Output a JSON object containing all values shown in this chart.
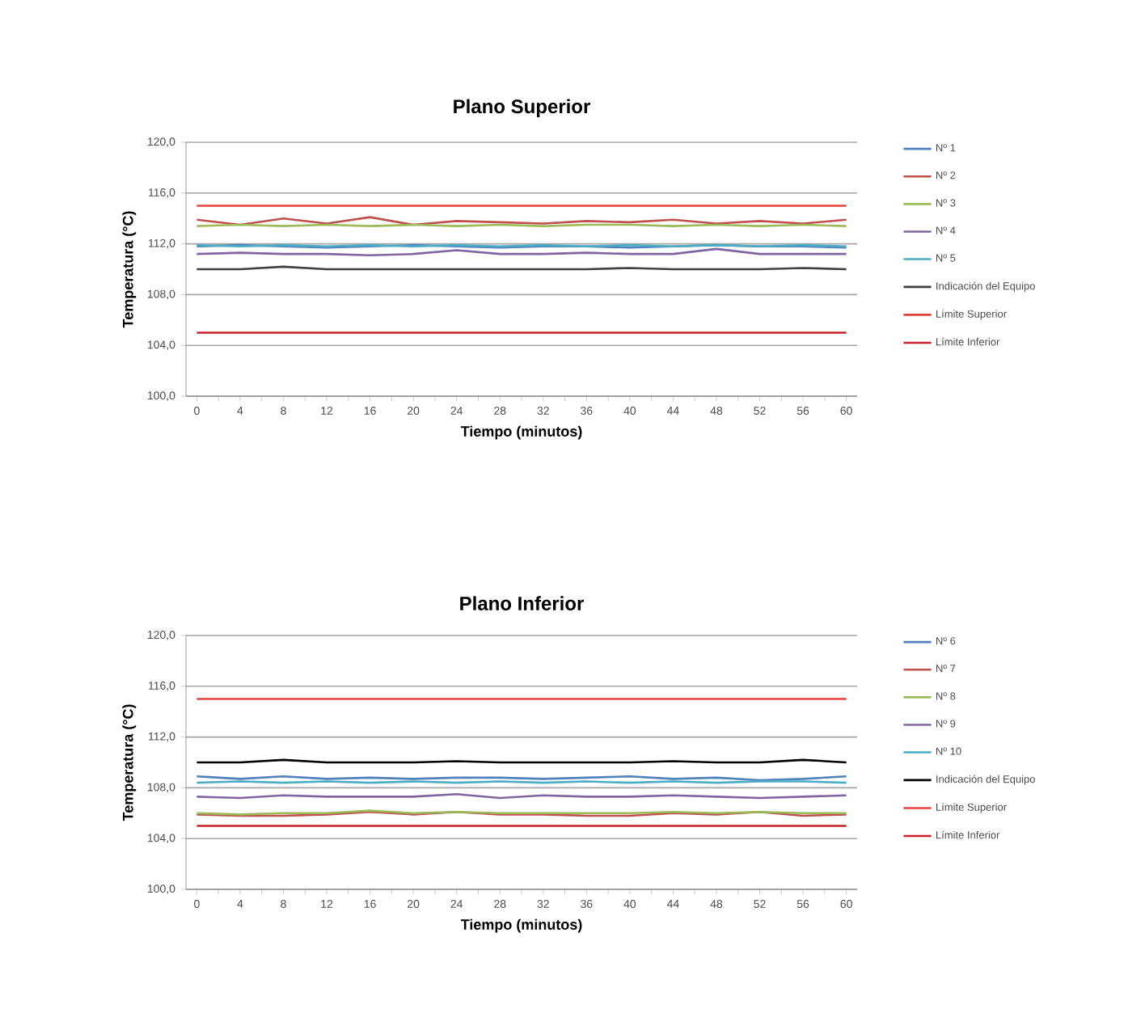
{
  "chart_data": [
    {
      "type": "line",
      "title": "Plano Superior",
      "xlabel": "Tiempo (minutos)",
      "ylabel": "Temperatura (°C)",
      "x": [
        0,
        4,
        8,
        12,
        16,
        20,
        24,
        28,
        32,
        36,
        40,
        44,
        48,
        52,
        56,
        60
      ],
      "xlim": [
        -1,
        61
      ],
      "xticks": [
        0,
        4,
        8,
        12,
        16,
        20,
        24,
        28,
        32,
        36,
        40,
        44,
        48,
        52,
        56,
        60
      ],
      "ylim": [
        100,
        120
      ],
      "yticks": [
        {
          "value": 100,
          "label": "100,0"
        },
        {
          "value": 104,
          "label": "104,0"
        },
        {
          "value": 108,
          "label": "108,0"
        },
        {
          "value": 112,
          "label": "112,0"
        },
        {
          "value": 116,
          "label": "116,0"
        },
        {
          "value": 120,
          "label": "120,0"
        }
      ],
      "grid": "y",
      "legend": "right",
      "marker": "none",
      "series": [
        {
          "name": "Nº 1",
          "color": "#4f81bd",
          "values": [
            111.8,
            111.9,
            111.8,
            111.7,
            111.8,
            111.9,
            111.8,
            111.7,
            111.8,
            111.8,
            111.7,
            111.8,
            111.9,
            111.8,
            111.8,
            111.7
          ]
        },
        {
          "name": "Nº 2",
          "color": "#c0504d",
          "values": [
            113.9,
            113.5,
            114.0,
            113.6,
            114.1,
            113.5,
            113.8,
            113.7,
            113.6,
            113.8,
            113.7,
            113.9,
            113.6,
            113.8,
            113.6,
            113.9
          ]
        },
        {
          "name": "Nº 3",
          "color": "#9bbb59",
          "values": [
            113.4,
            113.5,
            113.4,
            113.5,
            113.4,
            113.5,
            113.4,
            113.5,
            113.4,
            113.5,
            113.5,
            113.4,
            113.5,
            113.4,
            113.5,
            113.4
          ]
        },
        {
          "name": "Nº 4",
          "color": "#8064a2",
          "values": [
            111.2,
            111.3,
            111.2,
            111.2,
            111.1,
            111.2,
            111.5,
            111.2,
            111.2,
            111.3,
            111.2,
            111.2,
            111.6,
            111.2,
            111.2,
            111.2
          ]
        },
        {
          "name": "Nº 5",
          "color": "#4bacc6",
          "values": [
            111.9,
            111.8,
            111.9,
            111.8,
            111.9,
            111.8,
            111.9,
            111.8,
            111.9,
            111.8,
            111.9,
            111.8,
            111.9,
            111.8,
            111.9,
            111.8
          ]
        },
        {
          "name": "Indicación del Equipo",
          "color": "#404040",
          "values": [
            110.0,
            110.0,
            110.2,
            110.0,
            110.0,
            110.0,
            110.0,
            110.0,
            110.0,
            110.0,
            110.1,
            110.0,
            110.0,
            110.0,
            110.1,
            110.0
          ]
        },
        {
          "name": "Límite Superior",
          "color": "#e8403a",
          "values": [
            115,
            115,
            115,
            115,
            115,
            115,
            115,
            115,
            115,
            115,
            115,
            115,
            115,
            115,
            115,
            115
          ]
        },
        {
          "name": "Límite Inferior",
          "color": "#c8202a",
          "values": [
            105,
            105,
            105,
            105,
            105,
            105,
            105,
            105,
            105,
            105,
            105,
            105,
            105,
            105,
            105,
            105
          ]
        }
      ]
    },
    {
      "type": "line",
      "title": "Plano Inferior",
      "xlabel": "Tiempo (minutos)",
      "ylabel": "Temperatura (°C)",
      "x": [
        0,
        4,
        8,
        12,
        16,
        20,
        24,
        28,
        32,
        36,
        40,
        44,
        48,
        52,
        56,
        60
      ],
      "xlim": [
        -1,
        61
      ],
      "xticks": [
        0,
        4,
        8,
        12,
        16,
        20,
        24,
        28,
        32,
        36,
        40,
        44,
        48,
        52,
        56,
        60
      ],
      "ylim": [
        100,
        120
      ],
      "yticks": [
        {
          "value": 100,
          "label": "100,0"
        },
        {
          "value": 104,
          "label": "104,0"
        },
        {
          "value": 108,
          "label": "108,0"
        },
        {
          "value": 112,
          "label": "112,0"
        },
        {
          "value": 116,
          "label": "116,0"
        },
        {
          "value": 120,
          "label": "120,0"
        }
      ],
      "grid": "y",
      "legend": "right",
      "marker": "none",
      "series": [
        {
          "name": "Nº 6",
          "color": "#4f81bd",
          "values": [
            108.9,
            108.7,
            108.9,
            108.7,
            108.8,
            108.7,
            108.8,
            108.8,
            108.7,
            108.8,
            108.9,
            108.7,
            108.8,
            108.6,
            108.7,
            108.9
          ]
        },
        {
          "name": "Nº 7",
          "color": "#c0504d",
          "values": [
            105.9,
            105.8,
            105.8,
            105.9,
            106.1,
            105.9,
            106.1,
            105.9,
            105.9,
            105.8,
            105.8,
            106.0,
            105.9,
            106.1,
            105.8,
            105.9
          ]
        },
        {
          "name": "Nº 8",
          "color": "#9bbb59",
          "values": [
            106.0,
            105.9,
            106.0,
            106.0,
            106.2,
            106.0,
            106.1,
            106.0,
            106.0,
            106.0,
            106.0,
            106.1,
            106.0,
            106.1,
            106.0,
            106.0
          ]
        },
        {
          "name": "Nº 9",
          "color": "#8064a2",
          "values": [
            107.3,
            107.2,
            107.4,
            107.3,
            107.3,
            107.3,
            107.5,
            107.2,
            107.4,
            107.3,
            107.3,
            107.4,
            107.3,
            107.2,
            107.3,
            107.4
          ]
        },
        {
          "name": "Nº 10",
          "color": "#4bacc6",
          "values": [
            108.4,
            108.5,
            108.4,
            108.5,
            108.4,
            108.5,
            108.4,
            108.5,
            108.4,
            108.5,
            108.4,
            108.5,
            108.4,
            108.5,
            108.5,
            108.4
          ]
        },
        {
          "name": "Indicación del Equipo",
          "color": "#000000",
          "values": [
            110.0,
            110.0,
            110.2,
            110.0,
            110.0,
            110.0,
            110.1,
            110.0,
            110.0,
            110.0,
            110.0,
            110.1,
            110.0,
            110.0,
            110.2,
            110.0
          ]
        },
        {
          "name": "Límite Superior",
          "color": "#e8403a",
          "values": [
            115,
            115,
            115,
            115,
            115,
            115,
            115,
            115,
            115,
            115,
            115,
            115,
            115,
            115,
            115,
            115
          ]
        },
        {
          "name": "Límite Inferior",
          "color": "#c8202a",
          "values": [
            105,
            105,
            105,
            105,
            105,
            105,
            105,
            105,
            105,
            105,
            105,
            105,
            105,
            105,
            105,
            105
          ]
        }
      ]
    }
  ]
}
